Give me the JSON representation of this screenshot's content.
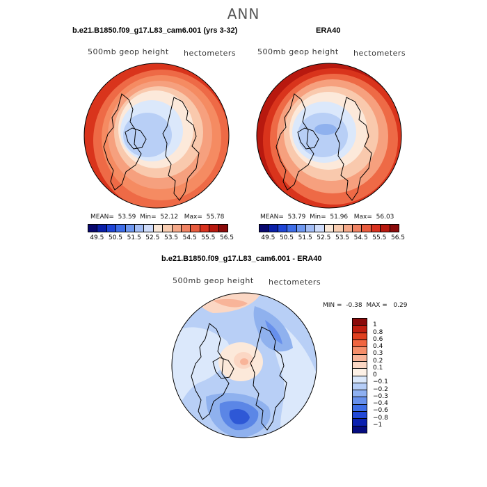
{
  "figure_title": "ANN",
  "panels": [
    {
      "title": "b.e21.B1850.f09_g17.L83_cam6.001 (yrs 3-32)",
      "variable": "500mb geop height",
      "units": "hectometers",
      "mean_label": "MEAN=",
      "mean": "53.59",
      "min_label": "Min=",
      "min": "52.12",
      "max_label": "Max=",
      "max": "55.78"
    },
    {
      "title": "ERA40",
      "variable": "500mb geop height",
      "units": "hectometers",
      "mean_label": "MEAN=",
      "mean": "53.79",
      "min_label": "Min=",
      "min": "51.96",
      "max_label": "Max=",
      "max": "56.03"
    }
  ],
  "abs_colorbar": {
    "ticks": [
      "49.5",
      "50.5",
      "51.5",
      "52.5",
      "53.5",
      "54.5",
      "55.5",
      "56.5"
    ],
    "colors": [
      "#08086e",
      "#0a1fa8",
      "#1f45d6",
      "#3f6ee8",
      "#6f98f0",
      "#a3bdf5",
      "#cfdcfa",
      "#f9e6d6",
      "#f8ccb0",
      "#f5a888",
      "#f08363",
      "#e85c3e",
      "#d9321f",
      "#b8190f",
      "#8a0a0a"
    ]
  },
  "diff_panel": {
    "title": "b.e21.B1850.f09_g17.L83_cam6.001 - ERA40",
    "variable": "500mb geop height",
    "units": "hectometers",
    "min_label": "MIN =",
    "min": "-0.38",
    "max_label": "MAX =",
    "max": "0.29"
  },
  "diff_colorbar": {
    "ticks": [
      "1",
      "0.8",
      "0.6",
      "0.4",
      "0.3",
      "0.2",
      "0.1",
      "0",
      "−0.1",
      "−0.2",
      "−0.3",
      "−0.4",
      "−0.6",
      "−0.8",
      "−1"
    ],
    "colors": [
      "#8a0a0a",
      "#c01e10",
      "#e0401f",
      "#f06540",
      "#f58e6a",
      "#f8b499",
      "#fbd7c4",
      "#fdf1e6",
      "#dbe8fb",
      "#b5cdf7",
      "#8eb0f2",
      "#6790ec",
      "#3f6ee6",
      "#2248d6",
      "#0a20b0",
      "#050c80"
    ]
  },
  "colors": {
    "deep_red": "#d9341c",
    "red": "#ee6a46",
    "salmon": "#f6a07e",
    "peach": "#f9c9ad",
    "cream": "#fce9da",
    "pale_blue": "#dbe8fb",
    "light_blue": "#b8cff6",
    "blue": "#8fb1ee",
    "mid_blue": "#5b86e6",
    "dark_blue": "#2e58d6"
  }
}
